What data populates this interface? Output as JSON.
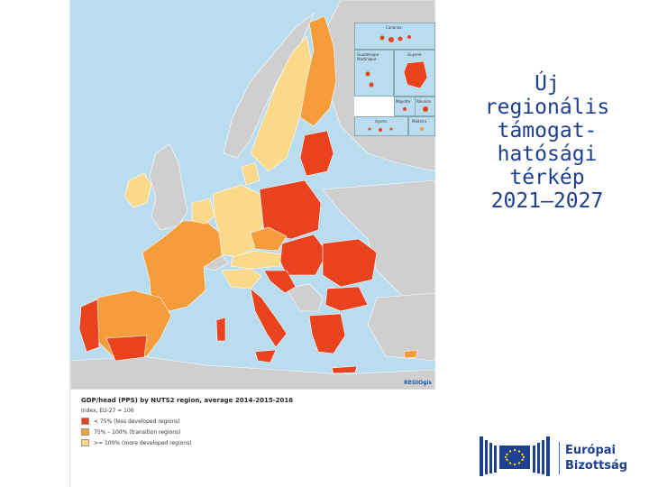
{
  "title_lines": [
    "Új",
    "regionális",
    "támogat-",
    "hatósági",
    "térkép",
    "2021–2027"
  ],
  "map": {
    "credit": "REGIOgis",
    "insets": [
      "Canarias",
      "Guadeloupe Martinique",
      "Guyane",
      "Mayotte",
      "Réunion",
      "Açores",
      "Madeira"
    ],
    "legend": {
      "title": "GDP/head (PPS) by NUTS2 region, average 2014-2015-2016",
      "subtitle": "Index, EU-27 = 100",
      "items": [
        {
          "label": "< 75% (less developed regions)",
          "color": "#e8421f"
        },
        {
          "label": "75% – 100% (transition regions)",
          "color": "#f49d3a"
        },
        {
          "label": ">= 100% (more developed regions)",
          "color": "#fbd98a"
        }
      ]
    },
    "colors": {
      "sea": "#b9dcef",
      "non_eu": "#cfcfcf",
      "less": "#e8421f",
      "transition": "#f49d3a",
      "more": "#fbd98a"
    }
  },
  "logo": {
    "line1": "Európai",
    "line2": "Bizottság"
  }
}
